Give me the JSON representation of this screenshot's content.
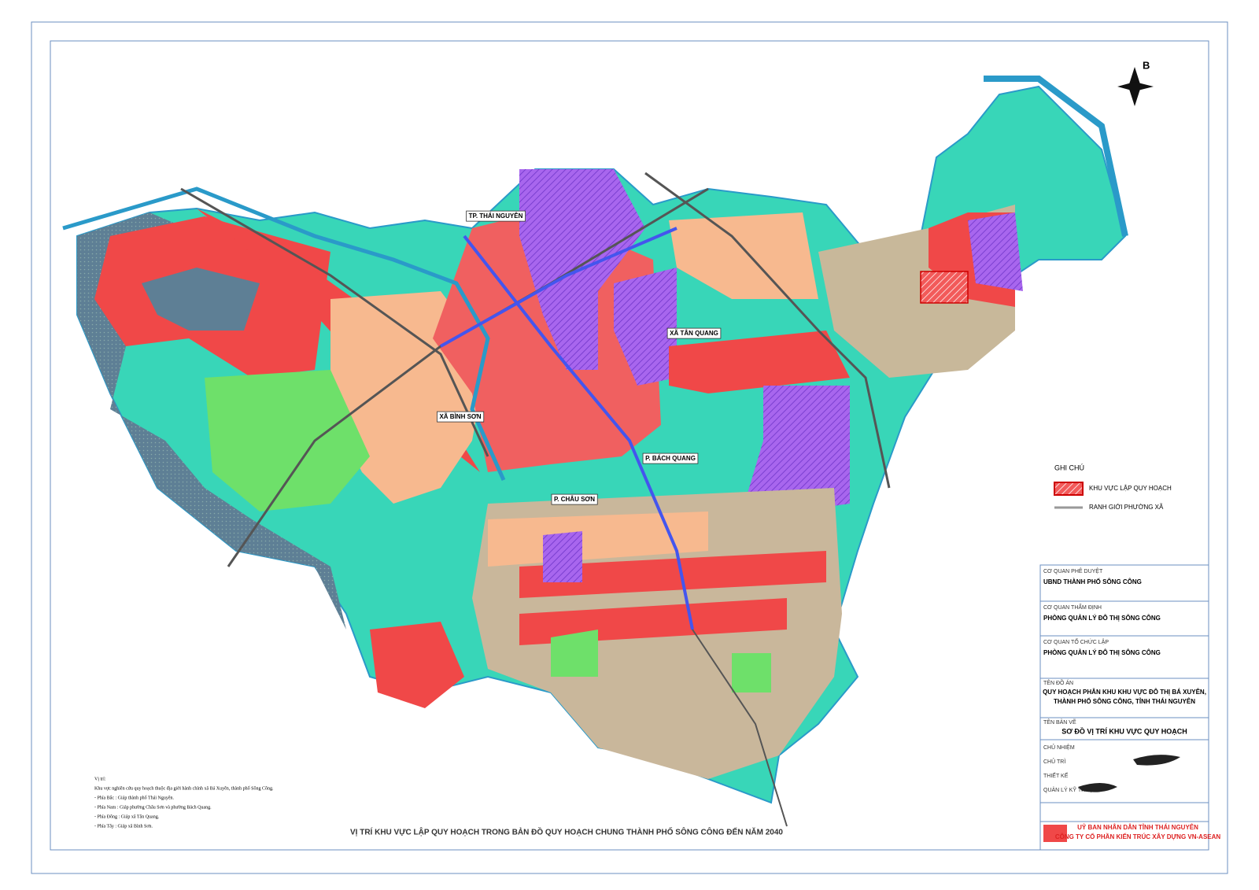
{
  "map": {
    "place_labels": [
      "TP. THÁI NGUYÊN",
      "XÃ TÂN QUANG",
      "XÃ BÌNH SƠN",
      "P. BÁCH QUANG",
      "P. CHÂU SƠN"
    ],
    "north_label": "B"
  },
  "legend": {
    "title": "GHI CHÚ",
    "items": [
      "KHU VỰC LẬP QUY HOẠCH",
      "RANH GIỚI PHƯỜNG XÃ"
    ]
  },
  "title": "VỊ TRÍ KHU VỰC LẬP QUY HOẠCH TRONG BẢN ĐỒ QUY HOẠCH CHUNG THÀNH PHỐ SÔNG CÔNG ĐẾN NĂM 2040",
  "notes": {
    "heading": "Vị trí:",
    "lines": [
      "Khu vực nghiên cứu quy hoạch thuộc địa giới hành chính xã Bá Xuyên, thành phố Sông Công.",
      "- Phía Bắc : Giáp thành phố Thái Nguyên.",
      "- Phía Nam : Giáp phường Châu Sơn và phường Bách Quang.",
      "- Phía Đông : Giáp xã Tân Quang.",
      "- Phía Tây : Giáp xã Bình Sơn."
    ]
  },
  "title_block": {
    "approval_label": "CƠ QUAN PHÊ DUYỆT",
    "approval": "UBND THÀNH PHỐ SÔNG CÔNG",
    "appraisal_label": "CƠ QUAN THẨM ĐỊNH",
    "appraisal": "PHÒNG QUẢN LÝ ĐÔ THỊ SÔNG CÔNG",
    "organizer_label": "CƠ QUAN TỔ CHỨC LẬP",
    "organizer": "PHÒNG QUẢN LÝ ĐÔ THỊ SÔNG CÔNG",
    "project_label": "TÊN ĐỒ ÁN",
    "project": [
      "QUY HOẠCH PHÂN KHU KHU VỰC ĐÔ THỊ BÁ XUYÊN,",
      "THÀNH PHỐ SÔNG CÔNG, TỈNH THÁI NGUYÊN"
    ],
    "drawing_label": "TÊN BẢN VẼ",
    "drawing": "SƠ ĐỒ VỊ TRÍ KHU VỰC QUY HOẠCH",
    "roles": [
      "CHỦ NHIỆM",
      "CHỦ TRÌ",
      "THIẾT KẾ",
      "QUẢN LÝ KỸ THUẬT"
    ],
    "agency": "UỶ BAN NHÂN DÂN TỈNH THÁI NGUYÊN",
    "company": "CÔNG TY CỔ PHẦN KIẾN TRÚC XÂY DỰNG VN-ASEAN"
  }
}
